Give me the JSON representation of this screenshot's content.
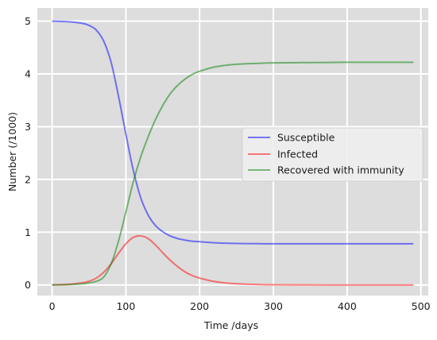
{
  "chart_data": {
    "type": "line",
    "xlabel": "Time /days",
    "ylabel": "Number (/1000)",
    "xlim": [
      -20,
      510
    ],
    "ylim": [
      -0.2,
      5.25
    ],
    "xticks": [
      0,
      100,
      200,
      300,
      400,
      500
    ],
    "yticks": [
      0,
      1,
      2,
      3,
      4,
      5
    ],
    "grid": true,
    "legend_position": "center-right",
    "x": [
      0,
      20,
      40,
      50,
      60,
      70,
      80,
      90,
      100,
      110,
      120,
      130,
      140,
      150,
      160,
      170,
      180,
      190,
      200,
      220,
      240,
      260,
      280,
      300,
      350,
      400,
      450,
      490
    ],
    "series": [
      {
        "name": "Susceptible",
        "color": "#0000ff",
        "values": [
          5.0,
          4.99,
          4.96,
          4.92,
          4.83,
          4.62,
          4.22,
          3.58,
          2.86,
          2.18,
          1.66,
          1.33,
          1.13,
          1.01,
          0.93,
          0.88,
          0.85,
          0.83,
          0.82,
          0.8,
          0.79,
          0.785,
          0.782,
          0.78,
          0.78,
          0.78,
          0.78,
          0.78
        ]
      },
      {
        "name": "Infected",
        "color": "#ff0000",
        "values": [
          0.002,
          0.01,
          0.04,
          0.07,
          0.13,
          0.24,
          0.4,
          0.6,
          0.78,
          0.9,
          0.93,
          0.88,
          0.76,
          0.61,
          0.47,
          0.35,
          0.25,
          0.18,
          0.13,
          0.065,
          0.032,
          0.016,
          0.008,
          0.004,
          0.001,
          0.0,
          0.0,
          0.0
        ]
      },
      {
        "name": "Recovered with immunity",
        "color": "#008000",
        "values": [
          0.0,
          0.005,
          0.02,
          0.04,
          0.07,
          0.15,
          0.4,
          0.83,
          1.38,
          1.95,
          2.42,
          2.8,
          3.13,
          3.4,
          3.62,
          3.78,
          3.9,
          3.99,
          4.05,
          4.13,
          4.17,
          4.19,
          4.2,
          4.21,
          4.215,
          4.22,
          4.22,
          4.22
        ]
      }
    ]
  }
}
